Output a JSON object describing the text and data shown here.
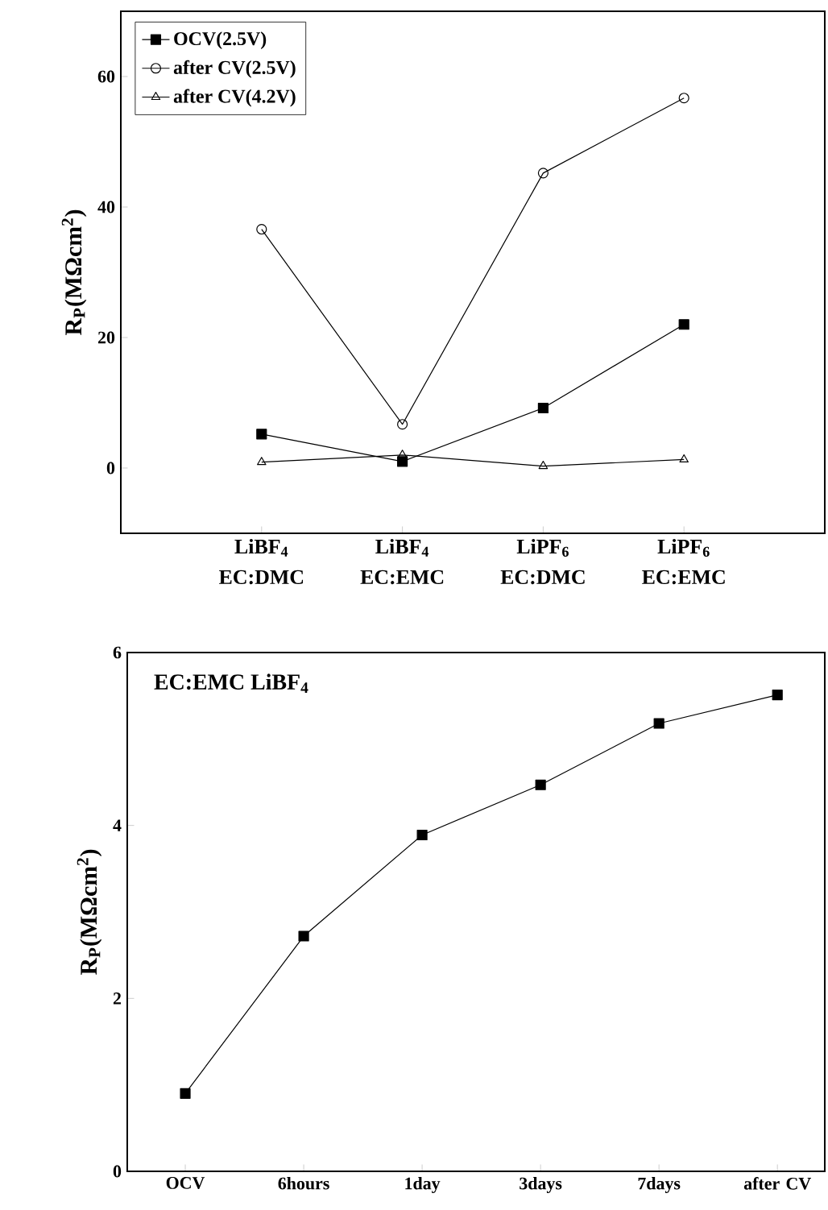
{
  "chart_data": [
    {
      "type": "line",
      "categories": [
        "LiBF$_{4}$ EC:DMC",
        "LiBF$_{4}$ EC:EMC",
        "LiPF$_{6}$ EC:DMC",
        "LiPF$_{6}$ EC:EMC"
      ],
      "ylabel": "R$_{P}$(MΩcm$^{2}$)",
      "ylim": [
        -10,
        70
      ],
      "yticks": [
        0,
        20,
        40,
        60
      ],
      "legend": "top left",
      "grid": false,
      "series": [
        {
          "name": "OCV(2.5V)",
          "color": "#000000",
          "marker": "square",
          "values": [
            5.2,
            1.0,
            9.2,
            22.0
          ]
        },
        {
          "name": "after CV(2.5V)",
          "color": "#000000",
          "marker": "circle",
          "values": [
            36.6,
            6.7,
            45.2,
            56.7
          ]
        },
        {
          "name": "after CV(4.2V)",
          "color": "#000000",
          "marker": "triangle",
          "values": [
            0.9,
            2.0,
            0.3,
            1.3
          ]
        }
      ]
    },
    {
      "type": "line",
      "categories": [
        "OCV",
        "6hours",
        "1day",
        "3days",
        "7days",
        "after CV"
      ],
      "ylabel": "R$_{P}$(MΩcm$^{2}$)",
      "ylim": [
        0,
        6
      ],
      "yticks": [
        0,
        2,
        4,
        6
      ],
      "grid": false,
      "marker": "square",
      "annotations": [
        "EC:EMC LiBF$_{4}$"
      ],
      "series": [
        {
          "color": "#000000",
          "values": [
            0.9,
            2.72,
            3.89,
            4.47,
            5.18,
            5.51
          ]
        }
      ]
    }
  ]
}
